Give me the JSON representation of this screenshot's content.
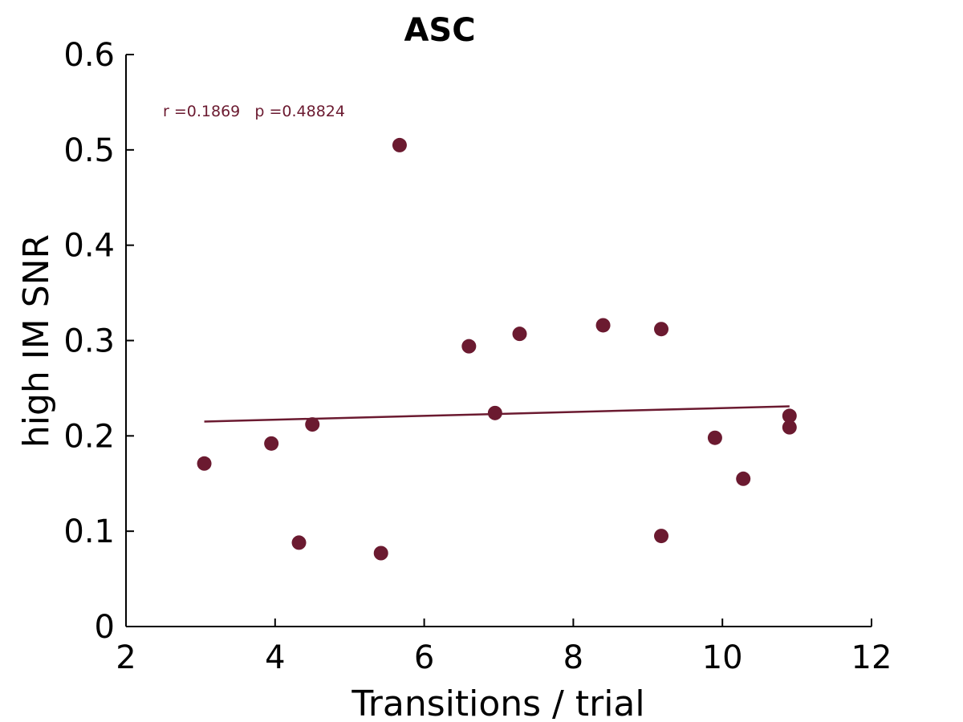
{
  "chart_data": {
    "type": "scatter",
    "title": "ASC",
    "xlabel": "Transitions / trial",
    "ylabel": "high IM SNR",
    "xlim": [
      2,
      12
    ],
    "ylim": [
      0,
      0.6
    ],
    "xticks": [
      2,
      4,
      6,
      8,
      10,
      12
    ],
    "xtick_labels": [
      "2",
      "4",
      "6",
      "8",
      "10",
      "12"
    ],
    "yticks": [
      0,
      0.1,
      0.2,
      0.3,
      0.4,
      0.5,
      0.6
    ],
    "ytick_labels": [
      "0",
      "0.1",
      "0.2",
      "0.3",
      "0.4",
      "0.5",
      "0.6"
    ],
    "grid": false,
    "color": "#6b1a30",
    "annotation": "r =0.1869   p =0.48824",
    "points": [
      {
        "x": 3.05,
        "y": 0.171
      },
      {
        "x": 3.95,
        "y": 0.192
      },
      {
        "x": 4.32,
        "y": 0.088
      },
      {
        "x": 4.5,
        "y": 0.212
      },
      {
        "x": 5.42,
        "y": 0.077
      },
      {
        "x": 5.67,
        "y": 0.505
      },
      {
        "x": 6.6,
        "y": 0.294
      },
      {
        "x": 6.95,
        "y": 0.224
      },
      {
        "x": 7.28,
        "y": 0.307
      },
      {
        "x": 8.4,
        "y": 0.316
      },
      {
        "x": 9.18,
        "y": 0.312
      },
      {
        "x": 9.18,
        "y": 0.095
      },
      {
        "x": 9.9,
        "y": 0.198
      },
      {
        "x": 10.28,
        "y": 0.155
      },
      {
        "x": 10.9,
        "y": 0.221
      },
      {
        "x": 10.9,
        "y": 0.209
      }
    ],
    "fit_line": {
      "x": [
        3.05,
        10.9
      ],
      "y": [
        0.215,
        0.231
      ]
    }
  }
}
